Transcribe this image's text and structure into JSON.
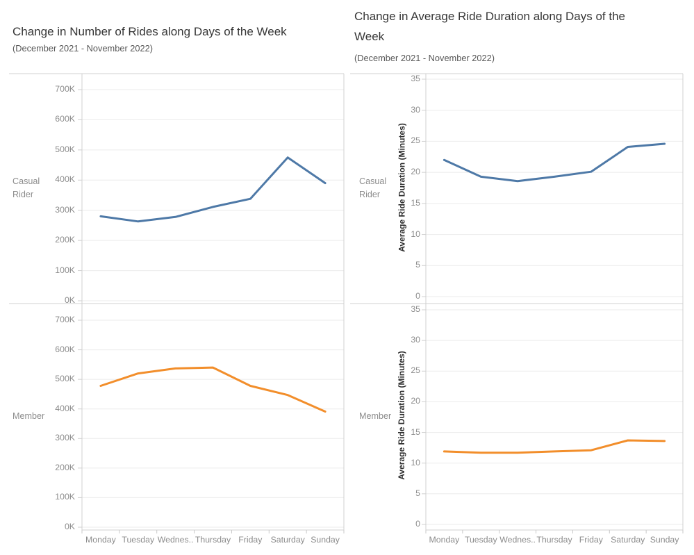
{
  "chart_data": [
    {
      "type": "line",
      "title": "Change in Number of Rides along Days of the Week",
      "subtitle": "(December 2021 - November 2022)",
      "categories": [
        "Monday",
        "Tuesday",
        "Wednes..",
        "Thursday",
        "Friday",
        "Saturday",
        "Sunday"
      ],
      "series": [
        {
          "name": "Casual Rider",
          "label_lines": [
            "Casual",
            "Rider"
          ],
          "color": "#4e79a7",
          "values": [
            280000,
            263000,
            278000,
            311000,
            338000,
            475000,
            390000
          ]
        },
        {
          "name": "Member",
          "label_lines": [
            "Member"
          ],
          "color": "#f28e2b",
          "values": [
            478000,
            520000,
            537000,
            540000,
            478000,
            447000,
            391000
          ]
        }
      ],
      "xlabel": "",
      "ylabel": "",
      "ylim": [
        0,
        700000
      ],
      "ytick_labels": [
        "0K",
        "100K",
        "200K",
        "300K",
        "400K",
        "500K",
        "600K",
        "700K"
      ],
      "grid": "horizontal-light",
      "legend": "none",
      "facet": "rows: Casual Rider / Member"
    },
    {
      "type": "line",
      "title": "Change in Average Ride Duration along Days of the Week",
      "subtitle": "(December 2021 - November 2022)",
      "categories": [
        "Monday",
        "Tuesday",
        "Wednes..",
        "Thursday",
        "Friday",
        "Saturday",
        "Sunday"
      ],
      "series": [
        {
          "name": "Casual Rider",
          "label_lines": [
            "Casual",
            "Rider"
          ],
          "color": "#4e79a7",
          "values": [
            22.0,
            19.3,
            18.6,
            19.3,
            20.1,
            24.1,
            24.6
          ]
        },
        {
          "name": "Member",
          "label_lines": [
            "Member"
          ],
          "color": "#f28e2b",
          "values": [
            11.9,
            11.7,
            11.7,
            11.9,
            12.1,
            13.7,
            13.6
          ]
        }
      ],
      "xlabel": "",
      "ylabel": "Average Ride Duration (Minutes)",
      "ylim": [
        0,
        35
      ],
      "ytick_labels": [
        "0",
        "5",
        "10",
        "15",
        "20",
        "25",
        "30",
        "35"
      ],
      "grid": "horizontal-light",
      "legend": "none",
      "facet": "rows: Casual Rider / Member"
    }
  ],
  "colors": {
    "casual_rider_line": "#4e79a7",
    "member_line": "#f28e2b",
    "axis_line": "#d0d0d0",
    "gridline": "#ebebeb",
    "boundary_tick": "#c9c9c9",
    "tick_text": "#8c8c8c",
    "title_text": "#363636",
    "subtitle_text": "#565656",
    "axis_title_text": "#2f2f2f"
  }
}
